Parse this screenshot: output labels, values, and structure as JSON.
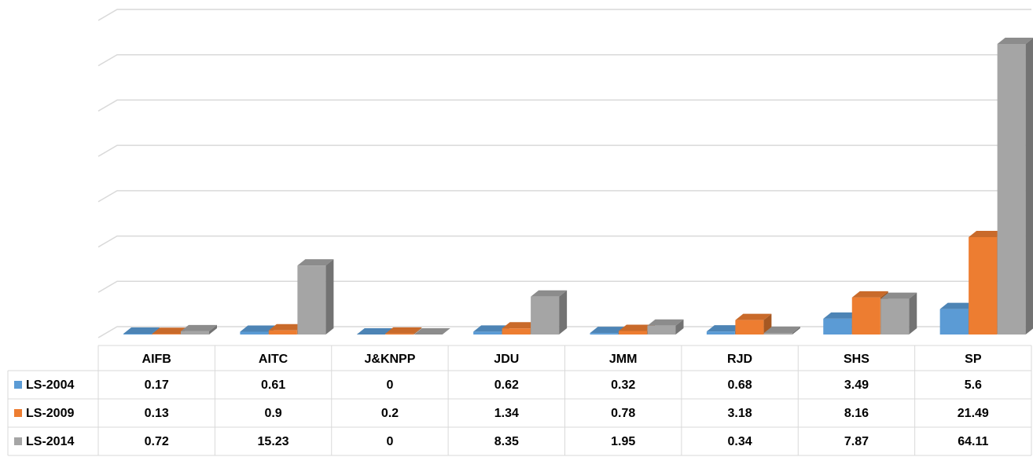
{
  "chart_data": {
    "type": "bar3d",
    "categories": [
      "AIFB",
      "AITC",
      "J&KNPP",
      "JDU",
      "JMM",
      "RJD",
      "SHS",
      "SP"
    ],
    "series": [
      {
        "name": "LS-2004",
        "color": "#5b9bd5",
        "values": [
          0.17,
          0.61,
          0,
          0.62,
          0.32,
          0.68,
          3.49,
          5.6
        ]
      },
      {
        "name": "LS-2009",
        "color": "#ed7d31",
        "values": [
          0.13,
          0.9,
          0.2,
          1.34,
          0.78,
          3.18,
          8.16,
          21.49
        ]
      },
      {
        "name": "LS-2014",
        "color": "#a5a5a5",
        "values": [
          0.72,
          15.23,
          0,
          8.35,
          1.95,
          0.34,
          7.87,
          64.11
        ]
      }
    ],
    "ylim": [
      0,
      70
    ],
    "yticks": [
      0,
      10,
      20,
      30,
      40,
      50,
      60,
      70
    ],
    "grid": true,
    "data_table": true
  }
}
